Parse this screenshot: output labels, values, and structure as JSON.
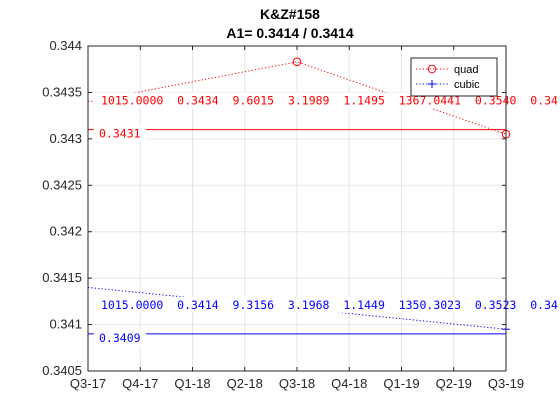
{
  "chart_data": {
    "type": "line",
    "title": "K&Z#158",
    "subtitle": "A1= 0.3414 / 0.3414",
    "xlabel": "",
    "ylabel": "",
    "categories": [
      "Q3-17",
      "Q4-17",
      "Q1-18",
      "Q2-18",
      "Q3-18",
      "Q4-18",
      "Q1-19",
      "Q2-19",
      "Q3-19"
    ],
    "ylim": [
      0.3405,
      0.344
    ],
    "yticks": [
      0.3405,
      0.341,
      0.3415,
      0.342,
      0.3425,
      0.343,
      0.3435,
      0.344
    ],
    "ytick_labels": [
      "0.3405",
      "0.341",
      "0.3415",
      "0.342",
      "0.3425",
      "0.343",
      "0.3435",
      "0.344"
    ],
    "grid": true,
    "legend_position": "top-right",
    "series": [
      {
        "name": "quad",
        "color": "#ff0000",
        "marker": "circle",
        "line_style": "dotted",
        "points": [
          {
            "x": 0,
            "y": 0.3434
          },
          {
            "x": 4,
            "y": 0.34383
          },
          {
            "x": 8,
            "y": 0.34305
          }
        ],
        "markers": [
          {
            "x": 4,
            "y": 0.34383
          },
          {
            "x": 8,
            "y": 0.34305
          }
        ],
        "reference_line": {
          "y": 0.3431,
          "x_start": 0,
          "x_end": 8
        },
        "annotations": {
          "param_row": "1015.0000  0.3434  9.6015  3.1989  1.1495  1367.0441  0.3540  0.34",
          "value_label": "0.3431"
        }
      },
      {
        "name": "cubic",
        "color": "#0000ff",
        "marker": "plus",
        "line_style": "dotted",
        "points": [
          {
            "x": 0,
            "y": 0.3414
          },
          {
            "x": 8,
            "y": 0.34095
          }
        ],
        "markers": [
          {
            "x": 8,
            "y": 0.34095
          }
        ],
        "reference_line": {
          "y": 0.3409,
          "x_start": 0,
          "x_end": 8
        },
        "annotations": {
          "param_row": "1015.0000  0.3414  9.3156  3.1968  1.1449  1350.3023  0.3523  0.34",
          "value_label": "0.3409"
        }
      }
    ]
  }
}
